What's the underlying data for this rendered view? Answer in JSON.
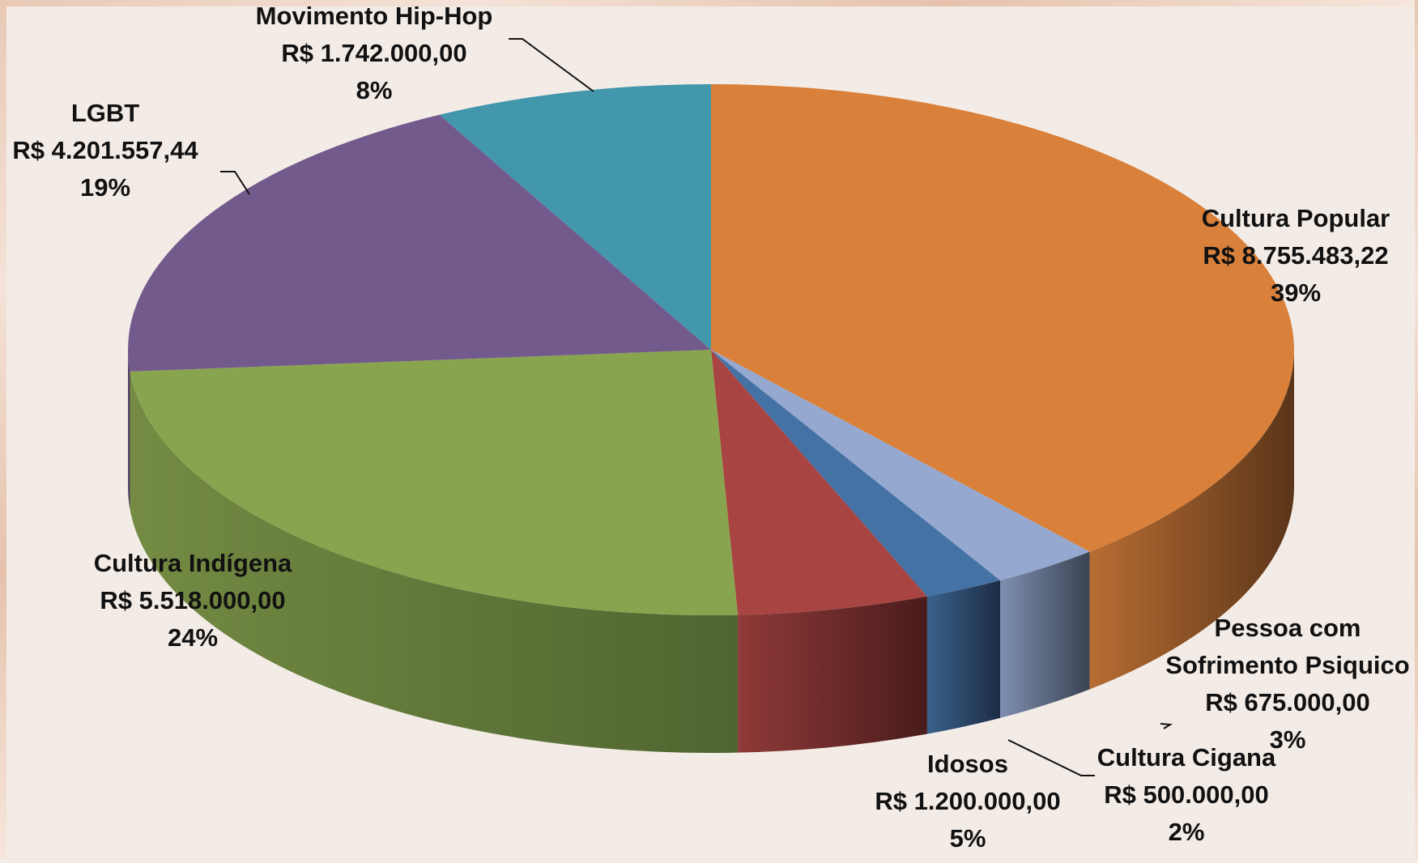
{
  "chart_data": {
    "type": "pie",
    "style": "3d",
    "title": "",
    "currency": "R$",
    "slices": [
      {
        "name": "Cultura Popular",
        "value_text": "R$ 8.755.483,22",
        "value": 8755483.22,
        "percent_text": "39%",
        "color": "#d9803b",
        "side_color": "#5a3519"
      },
      {
        "name": "Pessoa com Sofrimento Psiquico",
        "name_lines": [
          "Pessoa com",
          "Sofrimento Psiquico"
        ],
        "value_text": "R$ 675.000,00",
        "value": 675000.0,
        "percent_text": "3%",
        "color": "#95a8d0",
        "side_color": "#3a4352"
      },
      {
        "name": "Cultura Cigana",
        "value_text": "R$ 500.000,00",
        "value": 500000.0,
        "percent_text": "2%",
        "color": "#4472a5",
        "side_color": "#1c2c44"
      },
      {
        "name": "Idosos",
        "value_text": "R$ 1.200.000,00",
        "value": 1200000.0,
        "percent_text": "5%",
        "color": "#a84442",
        "side_color": "#4a1c1c"
      },
      {
        "name": "Cultura Indígena",
        "value_text": "R$ 5.518.000,00",
        "value": 5518000.0,
        "percent_text": "24%",
        "color": "#89a44f",
        "side_color": "#4f6530"
      },
      {
        "name": "LGBT",
        "value_text": "R$ 4.201.557,44",
        "value": 4201557.44,
        "percent_text": "19%",
        "color": "#735a8d",
        "side_color": "#3e2f4e"
      },
      {
        "name": "Movimento Hip-Hop",
        "value_text": "R$ 1.742.000,00",
        "value": 1742000.0,
        "percent_text": "8%",
        "color": "#4297ad",
        "side_color": "#25596a"
      }
    ]
  }
}
